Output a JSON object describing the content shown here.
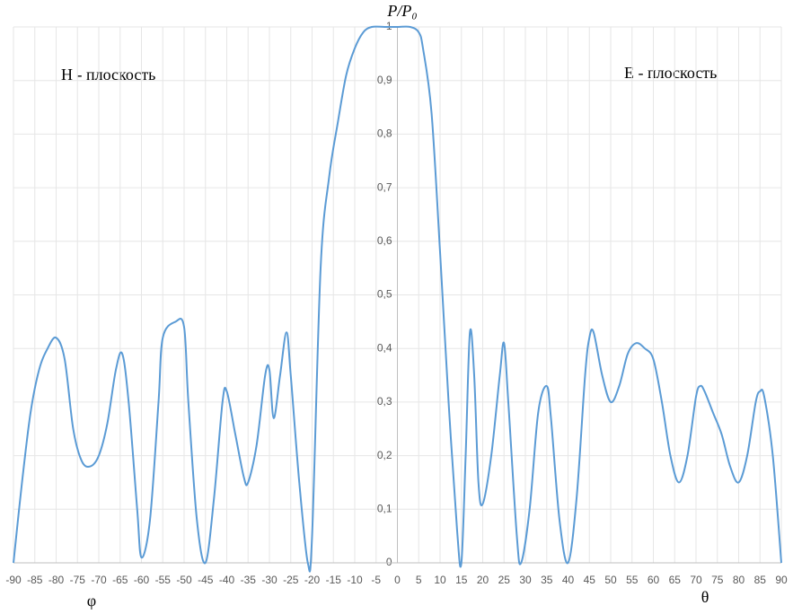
{
  "chart_data": {
    "type": "line",
    "y_label": "P/P₀",
    "x_labels": [
      "φ",
      "θ"
    ],
    "annotations": [
      "H - плоскость",
      "E - плоскость"
    ],
    "x": [
      -90,
      -88,
      -86,
      -84,
      -82,
      -80,
      -78,
      -76,
      -74,
      -72,
      -70,
      -68,
      -66,
      -64.5,
      -63,
      -61,
      -60,
      -58,
      -56,
      -55,
      -52,
      -50,
      -49,
      -47,
      -45,
      -43,
      -41,
      -40,
      -38,
      -36,
      -35,
      -33,
      -31,
      -30,
      -29,
      -27.5,
      -26,
      -25,
      -23,
      -21,
      -20,
      -18,
      -16,
      -14,
      -12,
      -10,
      -8,
      -6,
      -3,
      0,
      3,
      5,
      6,
      8,
      10,
      12,
      14,
      15,
      16,
      17,
      18,
      19,
      20,
      22,
      24,
      25,
      26,
      28,
      29,
      31,
      33,
      35,
      36,
      38,
      40,
      42,
      44,
      45,
      46,
      48,
      50,
      52,
      54,
      56,
      58,
      60,
      62,
      64,
      66,
      68,
      70,
      71,
      72,
      74,
      76,
      78,
      80,
      82,
      84,
      85,
      86,
      88,
      90
    ],
    "series": [
      {
        "color": "#5b9bd5",
        "values": [
          0,
          0.15,
          0.28,
          0.36,
          0.4,
          0.42,
          0.38,
          0.25,
          0.19,
          0.18,
          0.2,
          0.26,
          0.36,
          0.39,
          0.3,
          0.1,
          0.01,
          0.08,
          0.3,
          0.42,
          0.45,
          0.44,
          0.3,
          0.08,
          0,
          0.12,
          0.3,
          0.32,
          0.24,
          0.16,
          0.15,
          0.22,
          0.35,
          0.36,
          0.27,
          0.35,
          0.43,
          0.35,
          0.15,
          0,
          0.05,
          0.55,
          0.72,
          0.82,
          0.91,
          0.96,
          0.99,
          1,
          1,
          1,
          1,
          0.99,
          0.96,
          0.84,
          0.58,
          0.3,
          0.06,
          0,
          0.2,
          0.43,
          0.35,
          0.15,
          0.11,
          0.2,
          0.35,
          0.41,
          0.3,
          0.05,
          0,
          0.1,
          0.28,
          0.33,
          0.27,
          0.08,
          0,
          0.12,
          0.35,
          0.42,
          0.43,
          0.35,
          0.3,
          0.33,
          0.39,
          0.41,
          0.4,
          0.38,
          0.3,
          0.2,
          0.15,
          0.2,
          0.31,
          0.33,
          0.32,
          0.28,
          0.24,
          0.18,
          0.15,
          0.2,
          0.3,
          0.32,
          0.31,
          0.2,
          0
        ]
      }
    ],
    "xlim": [
      -90,
      90
    ],
    "ylim": [
      0,
      1
    ],
    "xticks": [
      -90,
      -85,
      -80,
      -75,
      -70,
      -65,
      -60,
      -55,
      -50,
      -45,
      -40,
      -35,
      -30,
      -25,
      -20,
      -15,
      -10,
      -5,
      0,
      5,
      10,
      15,
      20,
      25,
      30,
      35,
      40,
      45,
      50,
      55,
      60,
      65,
      70,
      75,
      80,
      85,
      90
    ],
    "yticks": [
      0,
      {
        "value": 0.1,
        "label": "0,1"
      },
      {
        "value": 0.2,
        "label": "0,2"
      },
      {
        "value": 0.3,
        "label": "0,3"
      },
      {
        "value": 0.4,
        "label": "0,4"
      },
      {
        "value": 0.5,
        "label": "0,5"
      },
      {
        "value": 0.6,
        "label": "0,6"
      },
      {
        "value": 0.7,
        "label": "0,7"
      },
      {
        "value": 0.8,
        "label": "0,8"
      },
      {
        "value": 0.9,
        "label": "0,9"
      },
      1
    ],
    "grid": true
  }
}
